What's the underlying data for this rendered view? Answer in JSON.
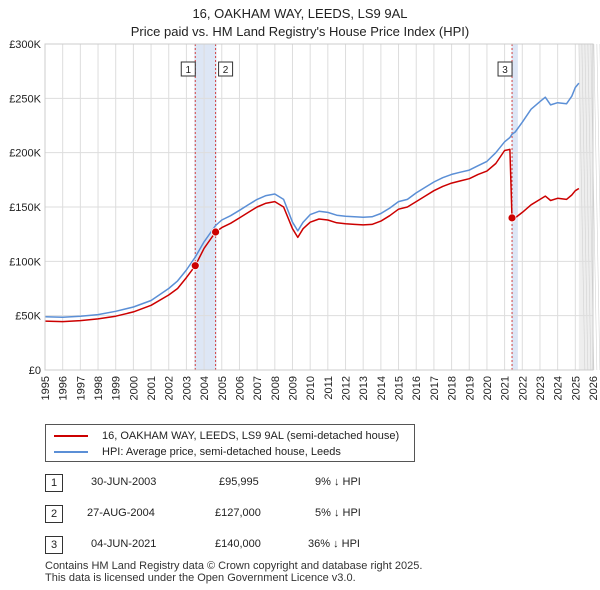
{
  "chart_data": {
    "type": "line",
    "title": "16, OAKHAM WAY, LEEDS, LS9 9AL",
    "subtitle": "Price paid vs. HM Land Registry's House Price Index (HPI)",
    "xlim": [
      1995,
      2026
    ],
    "ylim": [
      0,
      300000
    ],
    "x_ticks": [
      "1995",
      "1996",
      "1997",
      "1998",
      "1999",
      "2000",
      "2001",
      "2002",
      "2003",
      "2004",
      "2005",
      "2006",
      "2007",
      "2008",
      "2009",
      "2010",
      "2011",
      "2012",
      "2013",
      "2014",
      "2015",
      "2016",
      "2017",
      "2018",
      "2019",
      "2020",
      "2021",
      "2022",
      "2023",
      "2024",
      "2025",
      "2026"
    ],
    "y_ticks": [
      {
        "value": 0,
        "label": "£0"
      },
      {
        "value": 50000,
        "label": "£50K"
      },
      {
        "value": 100000,
        "label": "£100K"
      },
      {
        "value": 150000,
        "label": "£150K"
      },
      {
        "value": 200000,
        "label": "£200K"
      },
      {
        "value": 250000,
        "label": "£250K"
      },
      {
        "value": 300000,
        "label": "£300K"
      }
    ],
    "series": [
      {
        "name": "16, OAKHAM WAY, LEEDS, LS9 9AL (semi-detached house)",
        "color": "#cc0000",
        "points": [
          [
            1995.0,
            45000
          ],
          [
            1996.0,
            44500
          ],
          [
            1997.0,
            45500
          ],
          [
            1998.0,
            47000
          ],
          [
            1999.0,
            49500
          ],
          [
            2000.0,
            53500
          ],
          [
            2001.0,
            59500
          ],
          [
            2002.0,
            69000
          ],
          [
            2002.5,
            75000
          ],
          [
            2003.0,
            85000
          ],
          [
            2003.5,
            95995
          ],
          [
            2004.0,
            112000
          ],
          [
            2004.65,
            127000
          ],
          [
            2005.0,
            131000
          ],
          [
            2005.5,
            135000
          ],
          [
            2006.0,
            140000
          ],
          [
            2006.5,
            145000
          ],
          [
            2007.0,
            150000
          ],
          [
            2007.5,
            153500
          ],
          [
            2008.0,
            155000
          ],
          [
            2008.5,
            150000
          ],
          [
            2009.0,
            130000
          ],
          [
            2009.3,
            122000
          ],
          [
            2009.6,
            130000
          ],
          [
            2010.0,
            136000
          ],
          [
            2010.5,
            139000
          ],
          [
            2011.0,
            138000
          ],
          [
            2011.5,
            135500
          ],
          [
            2012.0,
            134500
          ],
          [
            2012.5,
            134000
          ],
          [
            2013.0,
            133500
          ],
          [
            2013.5,
            134000
          ],
          [
            2014.0,
            137000
          ],
          [
            2014.5,
            142000
          ],
          [
            2015.0,
            148000
          ],
          [
            2015.5,
            150000
          ],
          [
            2016.0,
            155000
          ],
          [
            2016.5,
            160000
          ],
          [
            2017.0,
            165000
          ],
          [
            2017.5,
            169000
          ],
          [
            2018.0,
            172000
          ],
          [
            2018.5,
            174000
          ],
          [
            2019.0,
            176000
          ],
          [
            2019.5,
            180000
          ],
          [
            2020.0,
            183000
          ],
          [
            2020.5,
            190000
          ],
          [
            2021.0,
            202000
          ],
          [
            2021.3,
            203000
          ],
          [
            2021.42,
            140000
          ],
          [
            2021.6,
            140000
          ],
          [
            2022.0,
            145000
          ],
          [
            2022.5,
            152000
          ],
          [
            2023.0,
            157000
          ],
          [
            2023.3,
            160000
          ],
          [
            2023.6,
            156000
          ],
          [
            2024.0,
            158000
          ],
          [
            2024.5,
            157000
          ],
          [
            2024.8,
            161000
          ],
          [
            2025.0,
            165000
          ],
          [
            2025.2,
            167000
          ]
        ]
      },
      {
        "name": "HPI: Average price, semi-detached house, Leeds",
        "color": "#5b8fd6",
        "points": [
          [
            1995.0,
            49000
          ],
          [
            1996.0,
            48500
          ],
          [
            1997.0,
            49500
          ],
          [
            1998.0,
            51000
          ],
          [
            1999.0,
            54000
          ],
          [
            2000.0,
            58000
          ],
          [
            2001.0,
            64000
          ],
          [
            2002.0,
            75000
          ],
          [
            2002.5,
            82000
          ],
          [
            2003.0,
            92000
          ],
          [
            2003.5,
            104000
          ],
          [
            2004.0,
            118000
          ],
          [
            2004.65,
            133000
          ],
          [
            2005.0,
            138000
          ],
          [
            2005.5,
            142000
          ],
          [
            2006.0,
            147000
          ],
          [
            2006.5,
            152000
          ],
          [
            2007.0,
            157000
          ],
          [
            2007.5,
            160500
          ],
          [
            2008.0,
            162000
          ],
          [
            2008.5,
            157000
          ],
          [
            2009.0,
            136000
          ],
          [
            2009.3,
            128000
          ],
          [
            2009.6,
            136000
          ],
          [
            2010.0,
            143000
          ],
          [
            2010.5,
            146000
          ],
          [
            2011.0,
            145000
          ],
          [
            2011.5,
            142500
          ],
          [
            2012.0,
            141500
          ],
          [
            2012.5,
            141000
          ],
          [
            2013.0,
            140500
          ],
          [
            2013.5,
            141000
          ],
          [
            2014.0,
            144000
          ],
          [
            2014.5,
            149000
          ],
          [
            2015.0,
            155000
          ],
          [
            2015.5,
            157000
          ],
          [
            2016.0,
            163000
          ],
          [
            2016.5,
            168000
          ],
          [
            2017.0,
            173000
          ],
          [
            2017.5,
            177000
          ],
          [
            2018.0,
            180000
          ],
          [
            2018.5,
            182000
          ],
          [
            2019.0,
            184000
          ],
          [
            2019.5,
            188000
          ],
          [
            2020.0,
            192000
          ],
          [
            2020.5,
            200000
          ],
          [
            2021.0,
            210000
          ],
          [
            2021.3,
            214000
          ],
          [
            2021.42,
            217000
          ],
          [
            2021.6,
            219000
          ],
          [
            2022.0,
            228000
          ],
          [
            2022.5,
            240000
          ],
          [
            2023.0,
            247000
          ],
          [
            2023.3,
            251000
          ],
          [
            2023.6,
            244000
          ],
          [
            2024.0,
            246000
          ],
          [
            2024.5,
            245000
          ],
          [
            2024.8,
            252000
          ],
          [
            2025.0,
            260000
          ],
          [
            2025.2,
            264000
          ]
        ]
      }
    ],
    "sales": [
      {
        "n": "1",
        "x": 2003.5,
        "value": 95995
      },
      {
        "n": "2",
        "x": 2004.65,
        "value": 127000
      },
      {
        "n": "3",
        "x": 2021.42,
        "value": 140000
      }
    ],
    "shaded_periods": [
      [
        2003.45,
        2004.7
      ],
      [
        2021.4,
        2021.75
      ]
    ],
    "forecast_from": 2025.2
  },
  "legend": {
    "items": [
      {
        "label": "16, OAKHAM WAY, LEEDS, LS9 9AL (semi-detached house)",
        "color": "#cc0000"
      },
      {
        "label": "HPI: Average price, semi-detached house, Leeds",
        "color": "#5b8fd6"
      }
    ]
  },
  "transactions": [
    {
      "n": "1",
      "date": "30-JUN-2003",
      "price": "£95,995",
      "hpi": "9% ↓ HPI"
    },
    {
      "n": "2",
      "date": "27-AUG-2004",
      "price": "£127,000",
      "hpi": "5% ↓ HPI"
    },
    {
      "n": "3",
      "date": "04-JUN-2021",
      "price": "£140,000",
      "hpi": "36% ↓ HPI"
    }
  ],
  "footer": {
    "line1": "Contains HM Land Registry data © Crown copyright and database right 2025.",
    "line2": "This data is licensed under the Open Government Licence v3.0."
  }
}
